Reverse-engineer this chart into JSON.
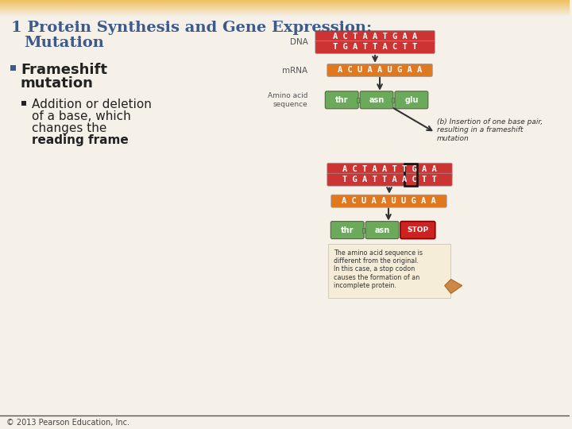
{
  "title_line1": "1 Protein Synthesis and Gene Expression:",
  "title_line2": "Mutation",
  "title_color": "#3d5a8a",
  "bg_color": "#f5f0e8",
  "header_bar_color": "#f0c060",
  "bullet1_line1": "Frameshift",
  "bullet1_line2": "mutation",
  "bullet2_line1": "Addition or deletion",
  "bullet2_line2": "of a base, which",
  "bullet2_line3": "changes the",
  "bullet2_bold": "reading frame",
  "footer_text": "© 2013 Pearson Education, Inc.",
  "dna_label": "DNA",
  "mrna_label": "mRNA",
  "amino_label": "Amino acid\nsequence",
  "dna_seq1_top": "A C T A A T G A A",
  "dna_seq1_bot": "T G A T T A C T T",
  "mrna_seq1": "A C U A A U G A A",
  "amino1": [
    "thr",
    "asn",
    "glu"
  ],
  "insert_label": "(b) Insertion of one base pair,\nresulting in a frameshift\nmutation",
  "dna_seq2_top": "A C T A A T T G A A",
  "dna_seq2_bot": "T G A T T A A C T T",
  "mrna_seq2": "A C U A A U U G A A",
  "amino2": [
    "thr",
    "asn",
    "STOP"
  ],
  "footnote_text": "The amino acid sequence is\ndifferent from the original.\nIn this case, a stop codon\ncauses the formation of an\nincomplete protein.",
  "green_color": "#6aaa5a",
  "dna_bg_red": "#cc3333",
  "dna_bg_orange": "#e07820",
  "white": "#ffffff",
  "text_dark": "#222222",
  "stop_red": "#cc2222",
  "arrow_color": "#333333",
  "label_color": "#555555"
}
